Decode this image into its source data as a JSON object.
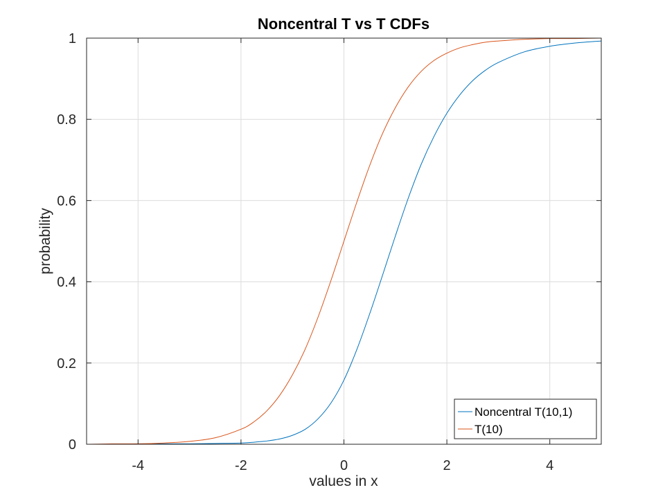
{
  "chart_data": {
    "type": "line",
    "title": "Noncentral T vs T CDFs",
    "xlabel": "values in x",
    "ylabel": "probability",
    "xlim": [
      -5,
      5
    ],
    "ylim": [
      0,
      1
    ],
    "xticks": [
      -4,
      -2,
      0,
      2,
      4
    ],
    "xtick_labels": [
      "-4",
      "-2",
      "0",
      "2",
      "4"
    ],
    "yticks": [
      0,
      0.2,
      0.4,
      0.6,
      0.8,
      1
    ],
    "ytick_labels": [
      "0",
      "0.2",
      "0.4",
      "0.6",
      "0.8",
      "1"
    ],
    "grid": true,
    "legend_position": "bottom-right",
    "x": [
      -5,
      -4.5,
      -4,
      -3.5,
      -3,
      -2.5,
      -2,
      -1.75,
      -1.5,
      -1.25,
      -1,
      -0.75,
      -0.5,
      -0.25,
      0,
      0.25,
      0.5,
      0.75,
      1,
      1.25,
      1.5,
      1.75,
      2,
      2.25,
      2.5,
      2.75,
      3,
      3.5,
      4,
      4.5,
      5
    ],
    "series": [
      {
        "name": "Noncentral T(10,1)",
        "color": "#0072bd",
        "values": [
          0,
          0,
          0.001,
          0.001,
          0.001,
          0.002,
          0.003,
          0.005,
          0.008,
          0.013,
          0.022,
          0.037,
          0.063,
          0.102,
          0.158,
          0.233,
          0.321,
          0.416,
          0.513,
          0.606,
          0.689,
          0.758,
          0.815,
          0.86,
          0.895,
          0.921,
          0.94,
          0.966,
          0.98,
          0.988,
          0.993
        ]
      },
      {
        "name": "T(10)",
        "color": "#d95319",
        "values": [
          0,
          0.001,
          0.001,
          0.003,
          0.007,
          0.016,
          0.037,
          0.055,
          0.082,
          0.12,
          0.171,
          0.235,
          0.314,
          0.404,
          0.5,
          0.596,
          0.686,
          0.765,
          0.829,
          0.88,
          0.918,
          0.945,
          0.963,
          0.976,
          0.984,
          0.99,
          0.993,
          0.997,
          0.999,
          0.999,
          1.0
        ]
      }
    ]
  }
}
